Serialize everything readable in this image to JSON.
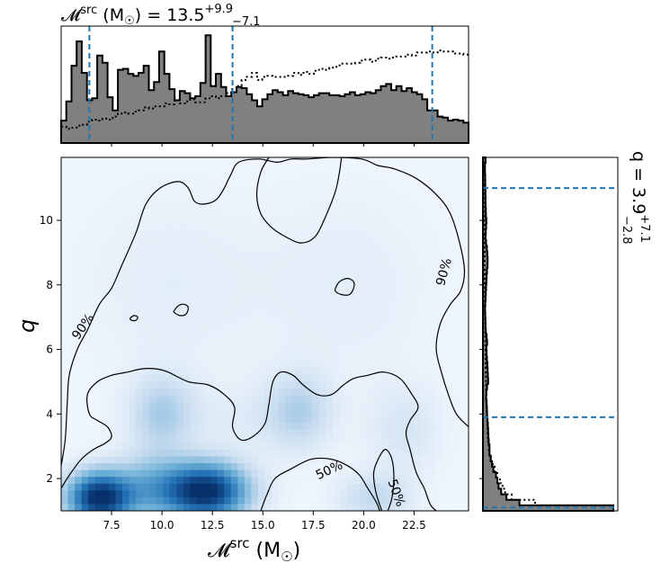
{
  "chart_data": {
    "type": "heatmap",
    "title": {
      "main": "𝓜",
      "sup": "src",
      "unit": " (M",
      "odot": "☉",
      "close": ")",
      "eq": " = 13.5",
      "plus": "+9.9",
      "minus": "−7.1"
    },
    "right_title": {
      "main": "q = 3.9",
      "plus": "+7.1",
      "minus": "−2.8"
    },
    "xlabel": {
      "main": "𝓜",
      "sup": "src",
      "unit": " (M",
      "odot": "☉",
      "close": ")"
    },
    "ylabel": "q",
    "xlim": [
      5.0,
      25.2
    ],
    "ylim": [
      1.0,
      11.95
    ],
    "xticks": [
      {
        "value": 7.5,
        "label": "7.5"
      },
      {
        "value": 10.0,
        "label": "10.0"
      },
      {
        "value": 12.5,
        "label": "12.5"
      },
      {
        "value": 15.0,
        "label": "15.0"
      },
      {
        "value": 17.5,
        "label": "17.5"
      },
      {
        "value": 20.0,
        "label": "20.0"
      },
      {
        "value": 22.5,
        "label": "22.5"
      }
    ],
    "yticks": [
      {
        "value": 2,
        "label": "2"
      },
      {
        "value": 4,
        "label": "4"
      },
      {
        "value": 6,
        "label": "6"
      },
      {
        "value": 8,
        "label": "8"
      },
      {
        "value": 10,
        "label": "10"
      }
    ],
    "contour_labels": [
      {
        "text": "90%",
        "x": 6.1,
        "y": 6.7,
        "angle": -55
      },
      {
        "text": "90%",
        "x": 24.0,
        "y": 8.4,
        "angle": -75
      },
      {
        "text": "50%",
        "x": 18.3,
        "y": 2.25,
        "angle": -25
      },
      {
        "text": "50%",
        "x": 21.6,
        "y": 1.55,
        "angle": 70
      }
    ],
    "density_blobs": [
      {
        "x": 6.9,
        "y": 1.4,
        "sx": 1.1,
        "sy": 0.55,
        "w": 1.0
      },
      {
        "x": 12.2,
        "y": 1.6,
        "sx": 1.4,
        "sy": 0.6,
        "w": 1.0
      },
      {
        "x": 9.5,
        "y": 1.7,
        "sx": 1.3,
        "sy": 0.7,
        "w": 0.35
      },
      {
        "x": 10.0,
        "y": 4.0,
        "sx": 1.1,
        "sy": 0.8,
        "w": 0.25
      },
      {
        "x": 16.8,
        "y": 4.1,
        "sx": 1.1,
        "sy": 0.8,
        "w": 0.22
      },
      {
        "x": 20.5,
        "y": 1.4,
        "sx": 1.2,
        "sy": 0.5,
        "w": 0.18
      },
      {
        "x": 22.0,
        "y": 3.5,
        "sx": 1.3,
        "sy": 1.0,
        "w": 0.1
      },
      {
        "x": 14.0,
        "y": 3.8,
        "sx": 2.0,
        "sy": 0.8,
        "w": 0.06
      },
      {
        "x": 10.5,
        "y": 8.0,
        "sx": 3.0,
        "sy": 2.0,
        "w": 0.05
      },
      {
        "x": 19.0,
        "y": 8.0,
        "sx": 3.0,
        "sy": 2.0,
        "w": 0.05
      }
    ],
    "contour_90": [
      [
        5.0,
        2.4
      ],
      [
        5.2,
        3.2
      ],
      [
        5.3,
        4.3
      ],
      [
        5.4,
        5.2
      ],
      [
        5.8,
        6.0
      ],
      [
        6.3,
        6.6
      ],
      [
        6.9,
        7.4
      ],
      [
        7.5,
        7.9
      ],
      [
        8.0,
        8.6
      ],
      [
        8.7,
        9.6
      ],
      [
        9.2,
        10.5
      ],
      [
        9.9,
        11.0
      ],
      [
        10.8,
        11.2
      ],
      [
        11.3,
        11.0
      ],
      [
        11.6,
        10.6
      ],
      [
        12.0,
        10.5
      ],
      [
        12.6,
        10.6
      ],
      [
        13.0,
        10.9
      ],
      [
        13.4,
        11.4
      ],
      [
        13.8,
        11.8
      ],
      [
        14.8,
        11.9
      ],
      [
        15.7,
        11.8
      ],
      [
        16.4,
        11.9
      ],
      [
        17.2,
        11.9
      ],
      [
        18.4,
        11.95
      ],
      [
        19.9,
        11.9
      ],
      [
        20.7,
        11.7
      ],
      [
        21.5,
        11.6
      ],
      [
        22.6,
        11.3
      ],
      [
        23.6,
        10.8
      ],
      [
        24.3,
        10.2
      ],
      [
        24.8,
        9.2
      ],
      [
        25.0,
        8.4
      ],
      [
        24.8,
        7.8
      ],
      [
        24.3,
        7.4
      ],
      [
        23.8,
        6.8
      ],
      [
        23.6,
        6.0
      ],
      [
        23.9,
        5.2
      ],
      [
        24.2,
        4.6
      ],
      [
        24.6,
        4.0
      ],
      [
        25.2,
        3.6
      ]
    ],
    "contour_90_island_right": [
      [
        15.3,
        11.95
      ],
      [
        14.9,
        11.5
      ],
      [
        14.7,
        10.8
      ],
      [
        14.9,
        10.2
      ],
      [
        15.4,
        9.8
      ],
      [
        16.1,
        9.5
      ],
      [
        16.9,
        9.3
      ],
      [
        17.6,
        9.5
      ],
      [
        18.1,
        10.1
      ],
      [
        18.6,
        10.9
      ],
      [
        18.8,
        11.5
      ],
      [
        18.9,
        11.95
      ]
    ],
    "contour_90_small_1": [
      [
        18.6,
        7.9
      ],
      [
        18.8,
        8.1
      ],
      [
        19.2,
        8.2
      ],
      [
        19.5,
        8.1
      ],
      [
        19.5,
        7.9
      ],
      [
        19.3,
        7.7
      ],
      [
        18.9,
        7.7
      ],
      [
        18.6,
        7.8
      ],
      [
        18.6,
        7.9
      ]
    ],
    "contour_90_small_2": [
      [
        10.6,
        7.2
      ],
      [
        10.8,
        7.35
      ],
      [
        11.1,
        7.4
      ],
      [
        11.3,
        7.3
      ],
      [
        11.2,
        7.1
      ],
      [
        10.9,
        7.05
      ],
      [
        10.6,
        7.15
      ],
      [
        10.6,
        7.2
      ]
    ],
    "contour_90_small_3": [
      [
        8.4,
        6.95
      ],
      [
        8.6,
        7.05
      ],
      [
        8.8,
        7.0
      ],
      [
        8.7,
        6.9
      ],
      [
        8.5,
        6.9
      ],
      [
        8.4,
        6.95
      ]
    ],
    "contour_50_main": [
      [
        5.0,
        1.7
      ],
      [
        5.4,
        2.1
      ],
      [
        6.0,
        2.6
      ],
      [
        6.6,
        2.9
      ],
      [
        7.2,
        3.1
      ],
      [
        7.5,
        3.3
      ],
      [
        7.3,
        3.6
      ],
      [
        6.8,
        3.8
      ],
      [
        6.4,
        4.0
      ],
      [
        6.3,
        4.6
      ],
      [
        6.8,
        5.0
      ],
      [
        7.5,
        5.2
      ],
      [
        8.3,
        5.3
      ],
      [
        9.0,
        5.4
      ],
      [
        9.7,
        5.4
      ],
      [
        10.3,
        5.3
      ],
      [
        11.3,
        5.0
      ],
      [
        12.3,
        4.9
      ],
      [
        13.1,
        4.6
      ],
      [
        13.6,
        4.2
      ],
      [
        13.5,
        3.6
      ],
      [
        13.9,
        3.2
      ],
      [
        14.5,
        3.3
      ],
      [
        15.1,
        3.7
      ],
      [
        15.3,
        4.3
      ],
      [
        15.5,
        5.0
      ],
      [
        15.9,
        5.3
      ],
      [
        16.5,
        5.2
      ],
      [
        17.0,
        4.9
      ],
      [
        17.7,
        4.6
      ],
      [
        18.4,
        4.6
      ],
      [
        19.0,
        4.9
      ],
      [
        19.5,
        5.1
      ],
      [
        20.2,
        5.2
      ],
      [
        21.0,
        5.3
      ],
      [
        21.8,
        5.1
      ],
      [
        22.4,
        4.6
      ],
      [
        22.7,
        4.2
      ],
      [
        22.3,
        3.8
      ],
      [
        22.1,
        3.4
      ],
      [
        22.3,
        2.9
      ],
      [
        22.6,
        2.2
      ],
      [
        23.0,
        1.7
      ],
      [
        23.3,
        1.2
      ],
      [
        23.6,
        1.0
      ]
    ],
    "contour_50_inner": [
      [
        20.8,
        1.0
      ],
      [
        20.6,
        1.3
      ],
      [
        20.2,
        1.7
      ],
      [
        19.8,
        2.1
      ],
      [
        19.2,
        2.4
      ],
      [
        18.4,
        2.6
      ],
      [
        17.4,
        2.6
      ],
      [
        16.4,
        2.3
      ],
      [
        15.6,
        2.0
      ],
      [
        15.2,
        1.5
      ],
      [
        14.9,
        1.0
      ]
    ],
    "contour_50_spike": [
      [
        20.9,
        1.0
      ],
      [
        20.6,
        1.6
      ],
      [
        20.5,
        2.2
      ],
      [
        20.8,
        2.7
      ],
      [
        21.1,
        2.9
      ],
      [
        21.4,
        2.6
      ],
      [
        21.5,
        2.0
      ],
      [
        21.4,
        1.4
      ],
      [
        21.2,
        1.0
      ]
    ],
    "hist_x_solid": [
      2.2,
      4.1,
      7.6,
      10.0,
      6.9,
      4.2,
      4.4,
      8.6,
      7.9,
      4.5,
      3.2,
      7.2,
      7.3,
      6.8,
      6.6,
      6.9,
      7.6,
      5.2,
      6.0,
      9.0,
      6.8,
      5.3,
      4.2,
      5.1,
      4.9,
      4.4,
      4.6,
      5.9,
      10.6,
      5.6,
      6.8,
      5.5,
      4.6,
      5.0,
      5.5,
      5.4,
      4.8,
      4.2,
      3.6,
      4.3,
      4.8,
      5.2,
      5.0,
      4.7,
      5.1,
      4.9,
      4.8,
      4.7,
      4.5,
      4.7,
      4.9,
      4.9,
      4.7,
      4.7,
      4.6,
      4.8,
      5.0,
      4.7,
      4.8,
      5.0,
      4.9,
      5.2,
      5.6,
      5.8,
      5.2,
      5.6,
      5.1,
      5.4,
      5.0,
      4.8,
      4.3,
      3.2,
      3.2,
      2.6,
      2.5,
      2.2,
      2.3,
      2.2,
      2.0
    ],
    "hist_x_dotted": [
      1.6,
      1.4,
      1.5,
      1.7,
      1.8,
      2.1,
      2.3,
      2.2,
      2.4,
      2.3,
      2.6,
      2.9,
      3.0,
      2.9,
      3.1,
      3.2,
      3.5,
      3.4,
      3.6,
      3.6,
      3.9,
      3.8,
      4.2,
      3.9,
      4.1,
      4.3,
      4.0,
      4.0,
      4.4,
      4.6,
      4.4,
      4.6,
      4.9,
      5.3,
      5.6,
      6.2,
      6.5,
      6.9,
      6.2,
      6.5,
      6.6,
      6.5,
      6.5,
      6.5,
      6.6,
      6.9,
      6.7,
      7.0,
      6.8,
      7.1,
      7.3,
      7.2,
      7.4,
      7.5,
      7.8,
      7.8,
      7.8,
      7.9,
      8.1,
      8.2,
      8.0,
      8.3,
      8.4,
      8.3,
      8.4,
      8.5,
      8.5,
      8.7,
      8.6,
      8.9,
      8.9,
      9.0,
      8.9,
      9.1,
      9.0,
      9.0,
      8.8,
      8.8,
      8.7
    ],
    "hist_x_percentiles": [
      6.4,
      13.5,
      23.4
    ],
    "hist_y_solid": [
      100,
      28,
      18,
      14,
      12,
      11,
      10,
      8,
      7,
      6,
      5,
      5,
      4.5,
      4.2,
      4.0,
      3.8,
      3.5,
      3.2,
      3.0,
      2.8,
      2.5,
      2.6,
      3.2,
      4.0,
      3.8,
      3.6,
      3.4,
      3.0,
      2.8,
      2.6,
      3.2,
      2.8,
      2.2,
      2.0,
      1.9,
      1.8,
      1.6,
      1.8,
      2.0,
      2.2,
      2.4,
      2.6,
      2.8,
      3.1,
      3.5,
      3.6,
      3.3,
      3.0,
      2.4,
      2.0,
      2.2,
      2.4,
      2.6,
      2.3,
      2.2,
      2.0,
      2.0,
      1.9,
      1.8,
      1.8,
      1.7,
      1.6,
      1.6,
      2.0
    ],
    "hist_y_dotted": [
      100,
      40,
      22,
      17,
      15,
      13,
      11,
      9,
      7.5,
      6,
      5,
      4.5,
      4,
      3.8,
      3.6,
      3.4,
      3.2,
      3.0,
      2.8,
      2.6,
      2.5,
      2.4,
      2.4,
      2.3,
      2.2,
      2.1,
      2.0,
      2.0,
      1.9,
      1.9,
      1.8,
      1.8,
      1.7,
      1.7,
      1.6,
      1.6,
      1.6,
      1.5,
      1.5,
      1.5,
      1.5,
      1.4,
      1.4,
      1.4,
      1.4,
      1.3,
      1.3,
      1.3,
      1.3,
      1.3,
      1.2,
      1.2,
      1.2,
      1.2,
      1.2,
      1.1,
      1.1,
      1.1,
      1.1,
      1.1,
      1.1,
      1.0,
      1.0,
      1.0
    ],
    "hist_y_percentiles": [
      1.1,
      3.9,
      11.0
    ],
    "colors": {
      "accent": "#1f77b4",
      "hist_fill": "#808080",
      "cmap_light": "#f7fbff",
      "cmap_dark": "#08306b"
    }
  }
}
